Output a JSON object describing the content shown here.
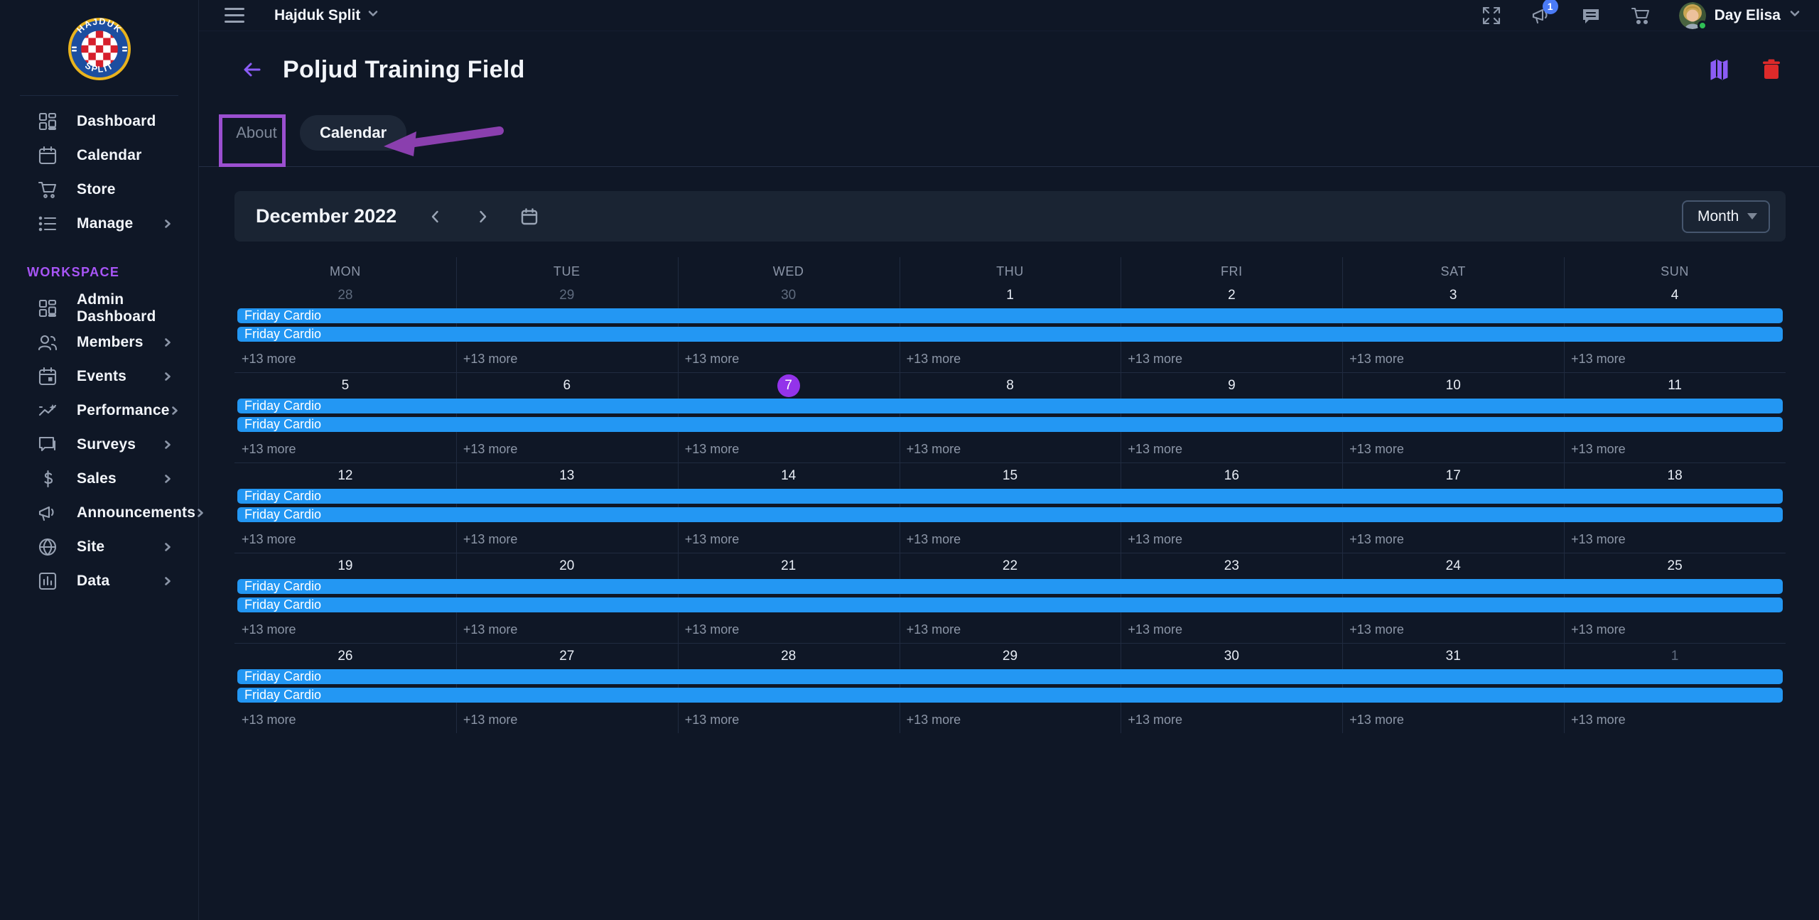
{
  "topbar": {
    "team": "Hajduk Split",
    "user_name": "Day Elisa",
    "notification_count": "1",
    "icons": [
      "fullscreen-icon",
      "megaphone-icon",
      "chat-icon",
      "cart-icon"
    ]
  },
  "sidebar": {
    "logo": "hajduk-split-crest",
    "workspace_label": "WORKSPACE",
    "items": [
      {
        "label": "Dashboard",
        "icon": "grid",
        "chevron": false
      },
      {
        "label": "Calendar",
        "icon": "calendar",
        "chevron": false
      },
      {
        "label": "Store",
        "icon": "cart",
        "chevron": false
      },
      {
        "label": "Manage",
        "icon": "list",
        "chevron": true
      }
    ],
    "workspace_items": [
      {
        "label": "Admin Dashboard",
        "icon": "grid",
        "chevron": false
      },
      {
        "label": "Members",
        "icon": "people",
        "chevron": true
      },
      {
        "label": "Events",
        "icon": "calendar-event",
        "chevron": true
      },
      {
        "label": "Performance",
        "icon": "trend",
        "chevron": true
      },
      {
        "label": "Surveys",
        "icon": "chat",
        "chevron": true
      },
      {
        "label": "Sales",
        "icon": "dollar",
        "chevron": true
      },
      {
        "label": "Announcements",
        "icon": "megaphone",
        "chevron": true
      },
      {
        "label": "Site",
        "icon": "globe",
        "chevron": true
      },
      {
        "label": "Data",
        "icon": "bar-chart",
        "chevron": true
      }
    ]
  },
  "page_header": {
    "title": "Poljud Training Field",
    "actions": [
      "map-icon",
      "trash-icon"
    ]
  },
  "tabs": {
    "about": "About",
    "calendar": "Calendar",
    "active": "Calendar"
  },
  "calendar": {
    "title": "December 2022",
    "view": "Month",
    "day_names": [
      "MON",
      "TUE",
      "WED",
      "THU",
      "FRI",
      "SAT",
      "SUN"
    ],
    "event_label": "Friday Cardio",
    "events_per_week": 2,
    "more_label": "+13 more",
    "today": "7",
    "weeks": [
      {
        "days": [
          {
            "n": "28",
            "muted": true
          },
          {
            "n": "29",
            "muted": true
          },
          {
            "n": "30",
            "muted": true
          },
          {
            "n": "1"
          },
          {
            "n": "2"
          },
          {
            "n": "3"
          },
          {
            "n": "4"
          }
        ]
      },
      {
        "days": [
          {
            "n": "5"
          },
          {
            "n": "6"
          },
          {
            "n": "7",
            "today": true
          },
          {
            "n": "8"
          },
          {
            "n": "9"
          },
          {
            "n": "10"
          },
          {
            "n": "11"
          }
        ]
      },
      {
        "days": [
          {
            "n": "12"
          },
          {
            "n": "13"
          },
          {
            "n": "14"
          },
          {
            "n": "15"
          },
          {
            "n": "16"
          },
          {
            "n": "17"
          },
          {
            "n": "18"
          }
        ]
      },
      {
        "days": [
          {
            "n": "19"
          },
          {
            "n": "20"
          },
          {
            "n": "21"
          },
          {
            "n": "22"
          },
          {
            "n": "23"
          },
          {
            "n": "24"
          },
          {
            "n": "25"
          }
        ]
      },
      {
        "days": [
          {
            "n": "26"
          },
          {
            "n": "27"
          },
          {
            "n": "28"
          },
          {
            "n": "29"
          },
          {
            "n": "30"
          },
          {
            "n": "31"
          },
          {
            "n": "1",
            "muted": true
          }
        ]
      }
    ]
  },
  "colors": {
    "background": "#0f1726",
    "panel": "#1a2433",
    "event_blue": "#2397f3",
    "today_purple": "#9333ea",
    "annotation_purple": "#9b4fd0",
    "back_arrow_purple": "#8b5cf6",
    "delete_red": "#dd2a2a",
    "workspace_purple": "#a855f7",
    "badge_blue": "#4b7bf5",
    "online_green": "#2fbf55"
  }
}
